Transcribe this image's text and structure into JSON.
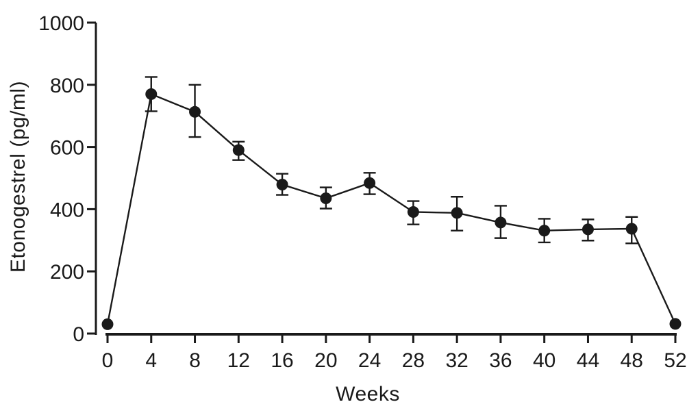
{
  "colors": {
    "ink": "#1a1a1a",
    "background": "#ffffff"
  },
  "chart_data": {
    "type": "line",
    "title": "",
    "xlabel": "Weeks",
    "ylabel": "Etonogestrel (pg/ml)",
    "x": [
      0,
      4,
      8,
      12,
      16,
      20,
      24,
      28,
      32,
      36,
      40,
      44,
      48,
      52
    ],
    "series": [
      {
        "name": "etonogestrel",
        "values": [
          30,
          770,
          713,
          590,
          479,
          435,
          484,
          391,
          388,
          357,
          331,
          335,
          337,
          31
        ]
      }
    ],
    "error_upper": [
      null,
      825,
      800,
      617,
      514,
      470,
      517,
      426,
      440,
      411,
      369,
      367,
      375,
      null
    ],
    "error_lower": [
      null,
      715,
      632,
      558,
      446,
      402,
      448,
      351,
      331,
      307,
      293,
      299,
      290,
      null
    ],
    "xlim": [
      0,
      52
    ],
    "ylim": [
      0,
      1000
    ],
    "xticks": [
      0,
      4,
      8,
      12,
      16,
      20,
      24,
      28,
      32,
      36,
      40,
      44,
      48,
      52
    ],
    "yticks": [
      0,
      200,
      400,
      600,
      800,
      1000
    ],
    "grid": false,
    "legend_position": "none",
    "marker": "filled-circle",
    "error_bars": "vertical-with-caps"
  }
}
